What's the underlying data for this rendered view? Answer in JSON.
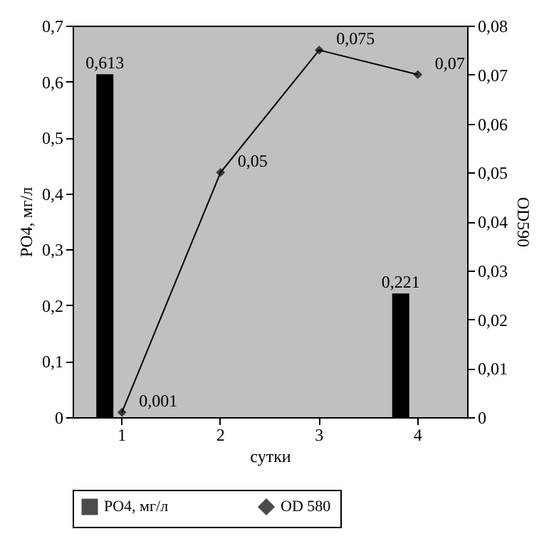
{
  "chart_data": {
    "type": "bar",
    "xlabel": "сутки",
    "ylabel": "PO4, мг/л",
    "y2label": "OD590",
    "categories": [
      "1",
      "2",
      "3",
      "4"
    ],
    "series": [
      {
        "name": "PO4, мг/л",
        "type": "bar",
        "color": "#000000",
        "values": [
          0.613,
          null,
          null,
          0.221
        ],
        "value_labels": [
          "0,613",
          null,
          null,
          "0,221"
        ]
      },
      {
        "name": "OD 580",
        "type": "line",
        "axis": "y2",
        "color": "#000000",
        "marker": "diamond",
        "values": [
          0.001,
          0.05,
          0.075,
          0.07
        ],
        "value_labels": [
          "0,001",
          "0,05",
          "0,075",
          "0,07"
        ]
      }
    ],
    "ylim": [
      0,
      0.7
    ],
    "yticks": [
      0,
      {
        "value": 0.1,
        "label": "0,1"
      },
      {
        "value": 0.2,
        "label": "0,2"
      },
      {
        "value": 0.3,
        "label": "0,3"
      },
      {
        "value": 0.4,
        "label": "0,4"
      },
      {
        "value": 0.5,
        "label": "0,5"
      },
      {
        "value": 0.6,
        "label": "0,6"
      },
      {
        "value": 0.7,
        "label": "0,7"
      }
    ],
    "y2lim": [
      0,
      0.08
    ],
    "y2ticks": [
      0,
      {
        "value": 0.01,
        "label": "0,01"
      },
      {
        "value": 0.02,
        "label": "0,02"
      },
      {
        "value": 0.03,
        "label": "0,03"
      },
      {
        "value": 0.04,
        "label": "0,04"
      },
      {
        "value": 0.05,
        "label": "0,05"
      },
      {
        "value": 0.06,
        "label": "0,06"
      },
      {
        "value": 0.07,
        "label": "0,07"
      },
      {
        "value": 0.08,
        "label": "0,08"
      }
    ],
    "grid": false,
    "legend": "bottom"
  }
}
